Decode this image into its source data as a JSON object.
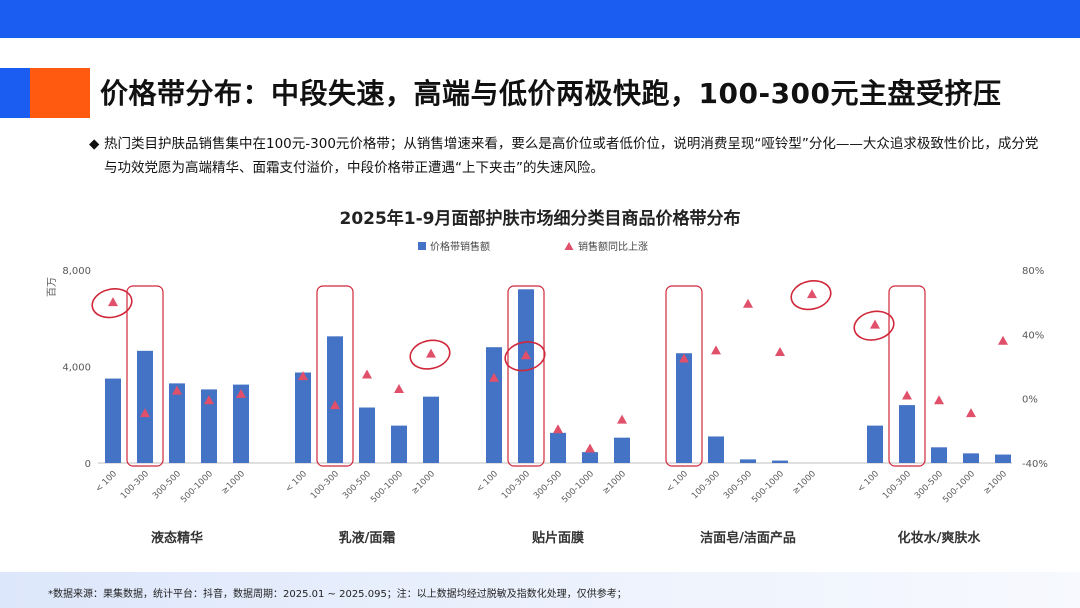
{
  "header": {
    "title": "价格带分布：中段失速，高端与低价两极快跑，100-300元主盘受挤压"
  },
  "summary": {
    "bullet_glyph": "◆",
    "text": "热门类目护肤品销售集中在100元-300元价格带；从销售增速来看，要么是高价位或者低价位，说明消费呈现“哑铃型”分化——大众追求极致性价比，成分党与功效党愿为高端精华、面霜支付溢价，中段价格带正遭遇“上下夹击”的失速风险。"
  },
  "footer": {
    "source": "*数据来源：果集数据，统计平台：抖音，数据周期：2025.01 ~ 2025.095；注：以上数据均经过脱敏及指数化处理，仅供参考；"
  },
  "colors": {
    "bar": "#4472c4",
    "marker": "#e0506a",
    "highlight": "#d0283a",
    "topbar": "#1a5df0",
    "accent": "#ff5a10"
  },
  "chart_data": {
    "type": "bar",
    "title": "2025年1-9月面部护肤市场细分类目商品价格带分布",
    "ylabel": "百万",
    "ylim": [
      0,
      8000
    ],
    "y_ticks": [
      "0",
      "4,000",
      "8,000"
    ],
    "y_tick_values": [
      0,
      4000,
      8000
    ],
    "y2lim": [
      -40,
      80
    ],
    "y2_ticks": [
      "-40%",
      "0%",
      "40%",
      "80%"
    ],
    "y2_tick_values": [
      -40,
      0,
      40,
      80
    ],
    "legend": {
      "position": "top",
      "bar": "价格带销售额",
      "marker": "销售额同比上涨"
    },
    "price_bands": [
      "< 100",
      "100-300",
      "300-500",
      "500-1000",
      "≥1000"
    ],
    "groups": [
      {
        "name": "液态精华",
        "sales": [
          3500,
          4650,
          3300,
          3050,
          3250
        ],
        "growth": [
          60,
          -9,
          5,
          -1,
          3
        ],
        "circled_growth": [
          0
        ],
        "boxed_band": 1
      },
      {
        "name": "乳液/面霜",
        "sales": [
          3750,
          5250,
          2300,
          1550,
          2750
        ],
        "growth": [
          14,
          -4,
          15,
          6,
          28
        ],
        "circled_growth": [
          4
        ],
        "boxed_band": 1
      },
      {
        "name": "贴片面膜",
        "sales": [
          4800,
          7200,
          1250,
          450,
          1050
        ],
        "growth": [
          13,
          27,
          -19,
          -31,
          -13
        ],
        "circled_growth": [
          1
        ],
        "boxed_band": 1
      },
      {
        "name": "洁面皂/洁面产品",
        "sales": [
          4550,
          1100,
          150,
          100,
          0
        ],
        "growth": [
          25,
          30,
          59,
          29,
          65
        ],
        "circled_growth": [
          4
        ],
        "boxed_band": 0
      },
      {
        "name": "化妆水/爽肤水",
        "sales": [
          1550,
          2400,
          650,
          400,
          350
        ],
        "growth": [
          46,
          2,
          -1,
          -9,
          36
        ],
        "circled_growth": [
          0
        ],
        "boxed_band": 1
      }
    ]
  }
}
